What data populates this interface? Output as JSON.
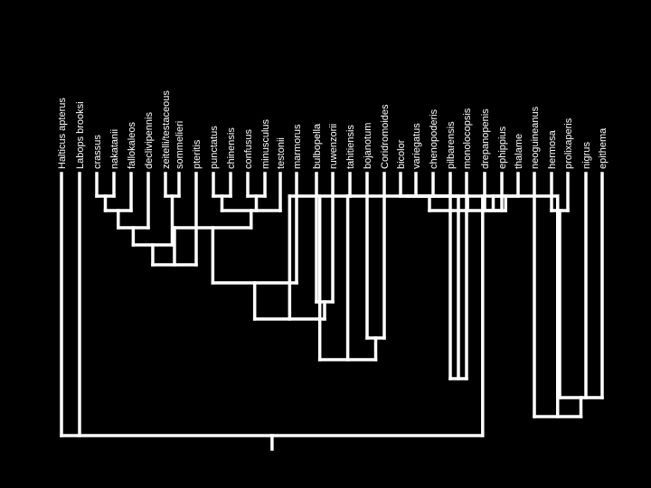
{
  "colors": {
    "background": "#000000",
    "line": "#ffffff",
    "text": "#ffffff"
  },
  "taxa": [
    "Halticus apterus",
    "Labops brooksi",
    "crassus",
    "nakatanii",
    "fallokaleos",
    "declivipennis",
    "zeitelli/testaceous",
    "sommelieri",
    "pteritis",
    "punctatus",
    "chinensis",
    "confusus",
    "minusculus",
    "testonii",
    "marmorus",
    "bulbopella",
    "ruwenzorii",
    "tahitiensis",
    "bojanotum",
    "Coridromoides",
    "bicolor",
    "variegatus",
    "chenopoderis",
    "pilbarensis",
    "monolocopsis",
    "drepanopenis",
    "ephippius",
    "thalame",
    "neoguineanus",
    "hermosa",
    "prolixaperis",
    "nigrus",
    "epithema"
  ],
  "tree": "(Halticus apterus,Labops brooksi,((((((((((((crassus,nakatanii),fallokaleos),declivipennis),(zeitelli/testaceous,sommelieri)),pteritis),((punctatus,chinensis),(confusus,minusculus),testonii)),marmorus),(bulbopella,ruwenzorii)),tahitiensis),(bojanotum,Coridromoides)),((bicolor,(variegatus,chenopoderis),(pilbarensis,monolocopsis)),((drepanopenis,ephippius),thalame))),(neoguineanus,((hermosa,prolixaperis),nigrus,epithema))))"
}
